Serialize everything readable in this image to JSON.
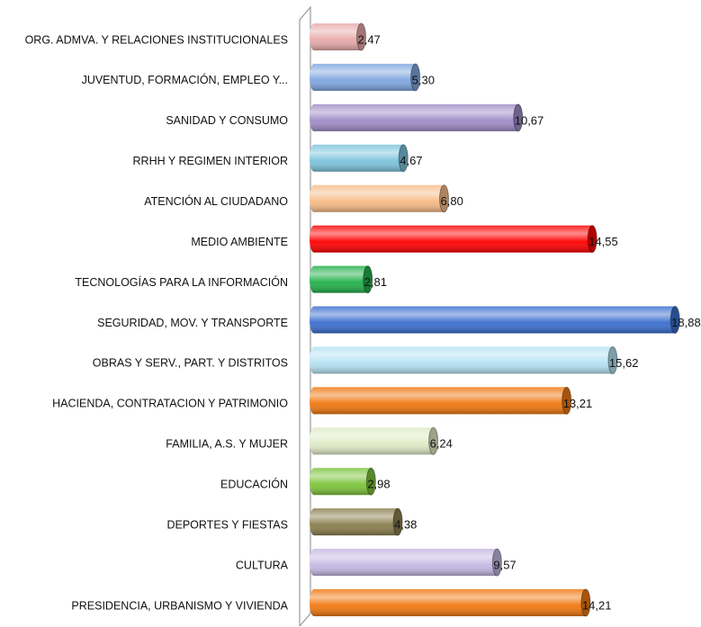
{
  "chart_data": {
    "type": "bar",
    "orientation": "horizontal",
    "categories": [
      "ORG. ADMVA. Y RELACIONES INSTITUCIONALES",
      "JUVENTUD, FORMACIÓN, EMPLEO Y...",
      "SANIDAD Y CONSUMO",
      "RRHH Y REGIMEN INTERIOR",
      "ATENCIÓN AL CIUDADANO",
      "MEDIO AMBIENTE",
      "TECNOLOGÍAS PARA LA INFORMACIÓN",
      "SEGURIDAD, MOV. Y TRANSPORTE",
      "OBRAS Y SERV., PART. Y DISTRITOS",
      "HACIENDA, CONTRATACION Y PATRIMONIO",
      "FAMILIA, A.S. Y MUJER",
      "EDUCACIÓN",
      "DEPORTES Y FIESTAS",
      "CULTURA",
      "PRESIDENCIA, URBANISMO Y VIVIENDA"
    ],
    "values": [
      2.47,
      5.3,
      10.67,
      4.67,
      6.8,
      14.55,
      2.81,
      18.88,
      15.62,
      13.21,
      6.24,
      2.98,
      4.38,
      9.57,
      14.21
    ],
    "value_labels": [
      "2,47",
      "5,30",
      "10,67",
      "4,67",
      "6,80",
      "14,55",
      "2,81",
      "18,88",
      "15,62",
      "13,21",
      "6,24",
      "2,98",
      "4,38",
      "9,57",
      "14,21"
    ],
    "colors": [
      "#e8aaaa",
      "#7fa6e0",
      "#a08cc8",
      "#7cc4dc",
      "#f8bc88",
      "#ff0000",
      "#22b04a",
      "#3a6ecf",
      "#b4e2f2",
      "#f07810",
      "#dfeac6",
      "#7cc43c",
      "#8a7e4e",
      "#c4b8e2",
      "#f07810"
    ],
    "xlim": [
      0,
      20
    ]
  }
}
